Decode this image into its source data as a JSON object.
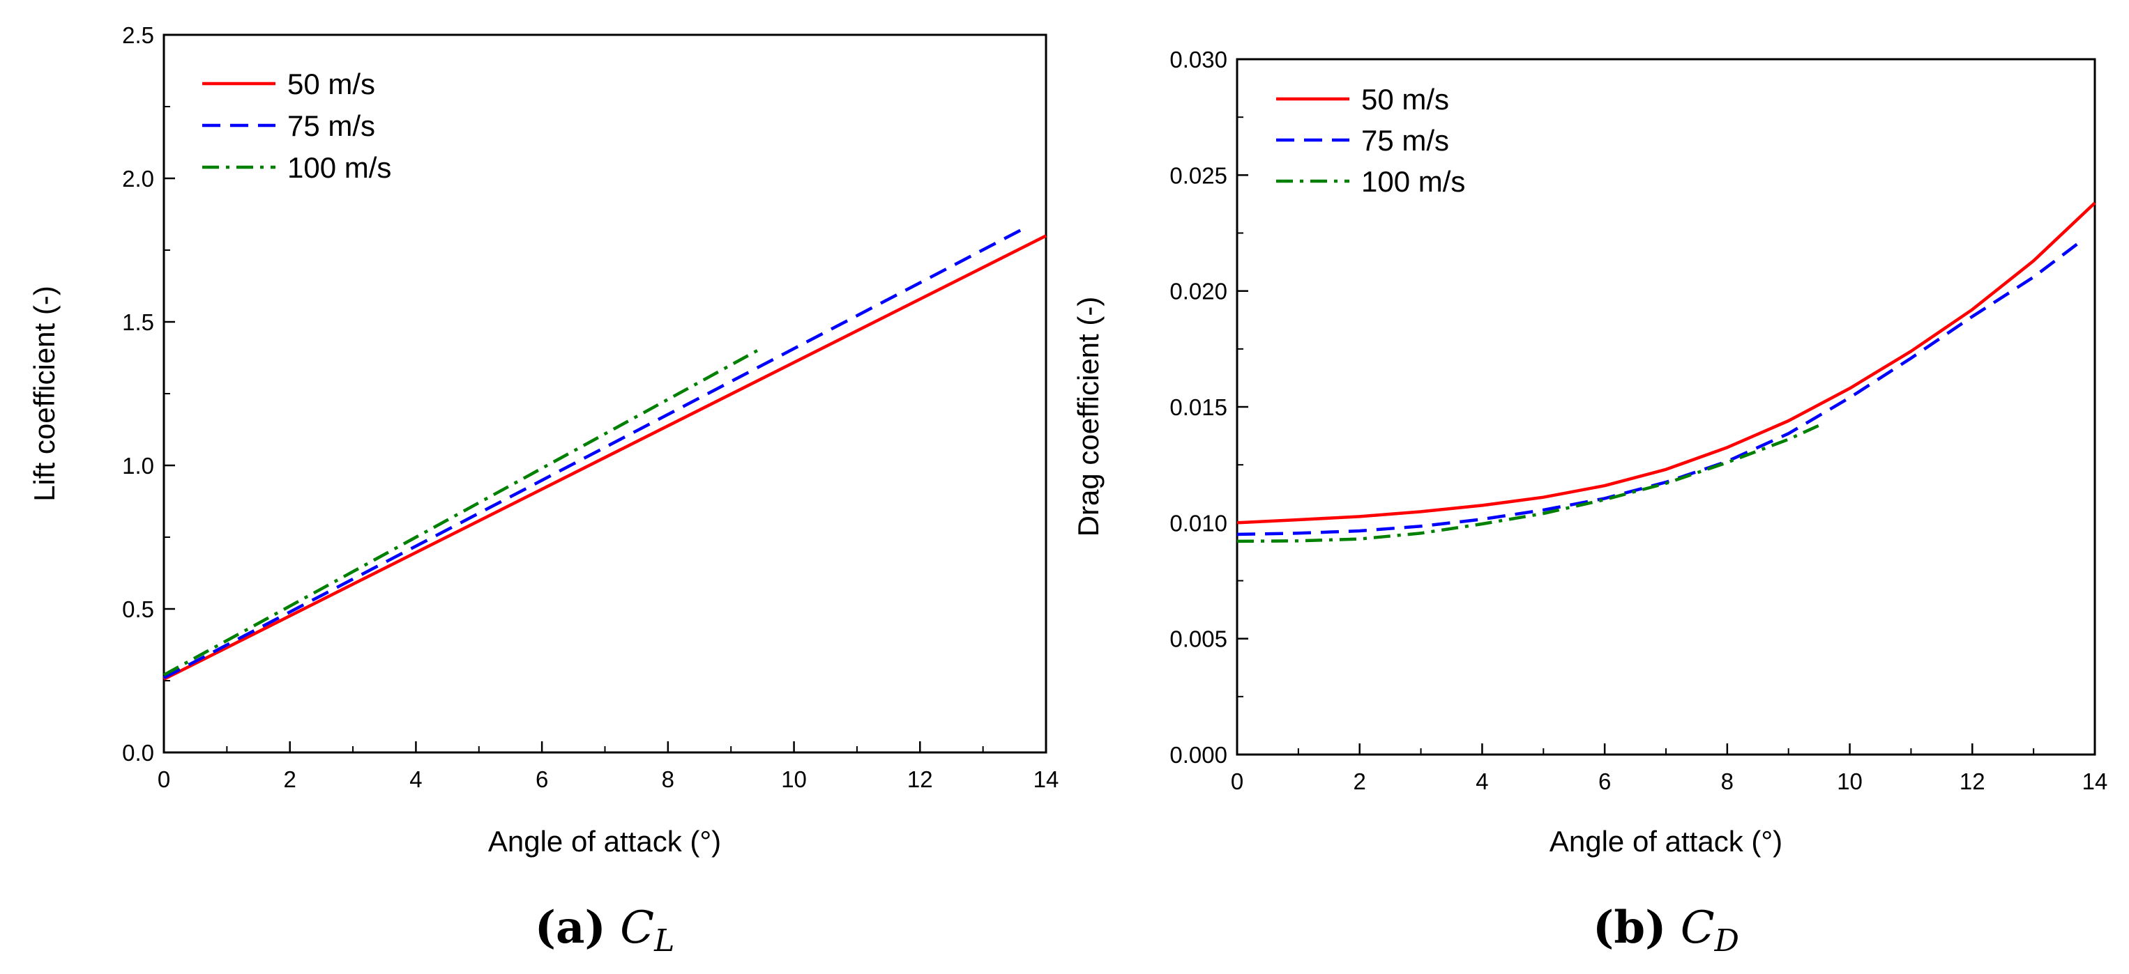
{
  "chart_data": [
    {
      "type": "line",
      "id": "lift",
      "xlabel": "Angle of attack (°)",
      "ylabel": "Lift coefficient (-)",
      "xlim": [
        0,
        14
      ],
      "ylim": [
        0,
        2.5
      ],
      "xticks": [
        0,
        2,
        4,
        6,
        8,
        10,
        12,
        14
      ],
      "xtick_labels": [
        "0",
        "2",
        "4",
        "6",
        "8",
        "10",
        "12",
        "14"
      ],
      "yticks": [
        0,
        0.5,
        1.0,
        1.5,
        2.0,
        2.5
      ],
      "ytick_labels": [
        "0.0",
        "0.5",
        "1.0",
        "1.5",
        "2.0",
        "2.5"
      ],
      "legend_position": "top-left",
      "caption": {
        "label": "(a)",
        "symbol": "C",
        "subscript": "L"
      },
      "series": [
        {
          "name": "50 m/s",
          "color": "#ff0000",
          "dash": "solid",
          "x": [
            0,
            14
          ],
          "y": [
            0.255,
            1.8
          ]
        },
        {
          "name": "75 m/s",
          "color": "#0000ff",
          "dash": "dashed",
          "x": [
            0,
            13.6
          ],
          "y": [
            0.26,
            1.82
          ]
        },
        {
          "name": "100 m/s",
          "color": "#008000",
          "dash": "dashdot",
          "x": [
            0,
            9.5
          ],
          "y": [
            0.27,
            1.41
          ]
        }
      ]
    },
    {
      "type": "line",
      "id": "drag",
      "xlabel": "Angle of attack (°)",
      "ylabel": "Drag coefficient (-)",
      "xlim": [
        0,
        14
      ],
      "ylim": [
        0,
        0.03
      ],
      "xticks": [
        0,
        2,
        4,
        6,
        8,
        10,
        12,
        14
      ],
      "xtick_labels": [
        "0",
        "2",
        "4",
        "6",
        "8",
        "10",
        "12",
        "14"
      ],
      "yticks": [
        0,
        0.005,
        0.01,
        0.015,
        0.02,
        0.025,
        0.03
      ],
      "ytick_labels": [
        "0.000",
        "0.005",
        "0.010",
        "0.015",
        "0.020",
        "0.025",
        "0.030"
      ],
      "legend_position": "top-left",
      "caption": {
        "label": "(b)",
        "symbol": "C",
        "subscript": "D"
      },
      "series": [
        {
          "name": "50 m/s",
          "color": "#ff0000",
          "dash": "solid",
          "x": [
            0,
            1,
            2,
            3,
            4,
            5,
            6,
            7,
            8,
            9,
            10,
            11,
            12,
            13,
            14
          ],
          "y": [
            0.01,
            0.01013,
            0.01027,
            0.01048,
            0.01075,
            0.0111,
            0.0116,
            0.0123,
            0.01325,
            0.0144,
            0.0158,
            0.0174,
            0.0192,
            0.0213,
            0.0238
          ]
        },
        {
          "name": "75 m/s",
          "color": "#0000ff",
          "dash": "dashed",
          "x": [
            0,
            1,
            2,
            3,
            4,
            5,
            6,
            7,
            8,
            9,
            10,
            11,
            12,
            13,
            13.8
          ],
          "y": [
            0.0095,
            0.00955,
            0.00965,
            0.00985,
            0.01015,
            0.01055,
            0.01105,
            0.01175,
            0.01265,
            0.01385,
            0.0154,
            0.0171,
            0.0189,
            0.0206,
            0.0222
          ]
        },
        {
          "name": "100 m/s",
          "color": "#008000",
          "dash": "dashdot",
          "x": [
            0,
            1,
            2,
            3,
            4,
            5,
            6,
            7,
            8,
            9,
            9.5
          ],
          "y": [
            0.0092,
            0.00922,
            0.0093,
            0.00955,
            0.00995,
            0.0104,
            0.011,
            0.0117,
            0.0126,
            0.0136,
            0.0142
          ]
        }
      ]
    }
  ]
}
